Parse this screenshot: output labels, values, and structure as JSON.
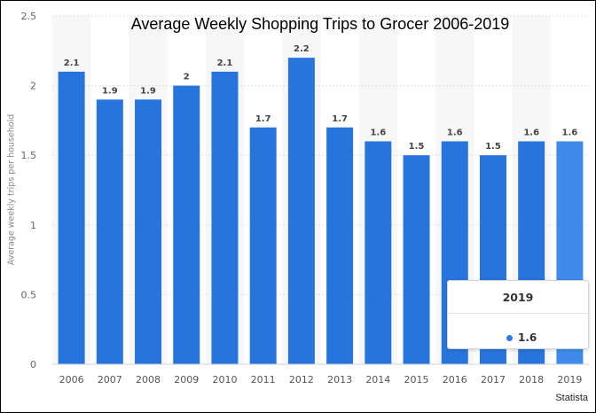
{
  "chart_data": {
    "type": "bar",
    "title": "Average Weekly Shopping Trips to Grocer 2006-2019",
    "ylabel": "Average weekly trips per household",
    "xlabel": "",
    "categories": [
      "2006",
      "2007",
      "2008",
      "2009",
      "2010",
      "2011",
      "2012",
      "2013",
      "2014",
      "2015",
      "2016",
      "2017",
      "2018",
      "2019"
    ],
    "values": [
      2.1,
      1.9,
      1.9,
      2,
      2.1,
      1.7,
      2.2,
      1.7,
      1.6,
      1.5,
      1.6,
      1.5,
      1.6,
      1.6
    ],
    "value_labels": [
      "2.1",
      "1.9",
      "1.9",
      "2",
      "2.1",
      "1.7",
      "2.2",
      "1.7",
      "1.6",
      "1.5",
      "1.6",
      "1.5",
      "1.6",
      "1.6"
    ],
    "ylim": [
      0,
      2.5
    ],
    "yticks": [
      "0",
      "0.5",
      "1",
      "1.5",
      "2",
      "2.5"
    ],
    "grid": true,
    "highlighted_category": "2019",
    "colors": {
      "bar": "#2775dc",
      "bar_highlight": "#3f8bed",
      "band": "#f7f7f7"
    }
  },
  "tooltip": {
    "title": "2019",
    "value": "1.6"
  },
  "credit": "Statista"
}
